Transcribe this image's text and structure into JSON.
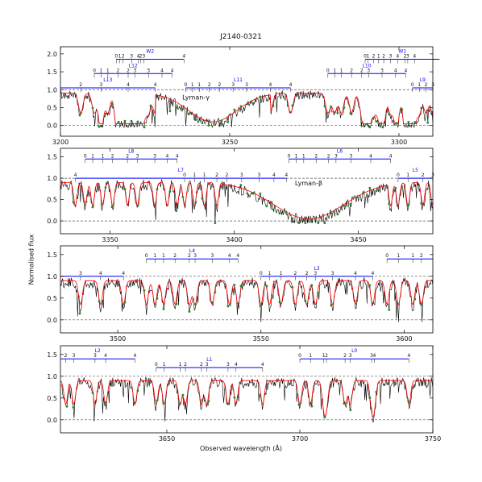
{
  "chart_data": {
    "type": "line",
    "title": "J2140-0321",
    "ylabel": "Normalised flux",
    "xlabel": "Observed wavelength (Å)",
    "colors": {
      "data": "#000000",
      "model": "#ff0000",
      "fit_points": "#228b22",
      "lines": "#0000ff",
      "dashed": "#555555"
    },
    "grid": false,
    "panels": [
      {
        "xlim": [
          3200,
          3310
        ],
        "ylim": [
          -0.3,
          2.2
        ],
        "xticks": [
          3200,
          3250,
          3300
        ],
        "yticks": [
          0.0,
          0.5,
          1.0,
          1.5,
          2.0
        ],
        "region_labels": [
          {
            "text": "Lyman-γ",
            "x": 3240,
            "y": 0.72
          }
        ],
        "systems": [
          {
            "label": "W2",
            "y": 1.85,
            "x0": 3216.5,
            "x1": 3236.5,
            "ticks": [
              {
                "x": 3216.5,
                "t": "0"
              },
              {
                "x": 3217.5,
                "t": "1"
              },
              {
                "x": 3218.5,
                "t": "2"
              },
              {
                "x": 3221,
                "t": "3"
              },
              {
                "x": 3223,
                "t": "4"
              },
              {
                "x": 3223.7,
                "t": "2"
              },
              {
                "x": 3224.6,
                "t": "3"
              },
              {
                "x": 3236.5,
                "t": "4"
              }
            ]
          },
          {
            "label": "W1",
            "y": 1.85,
            "x0": 3290,
            "x1": 3312,
            "ticks": [
              {
                "x": 3290,
                "t": "0"
              },
              {
                "x": 3290.8,
                "t": "1"
              },
              {
                "x": 3292.5,
                "t": "2"
              },
              {
                "x": 3294,
                "t": "1"
              },
              {
                "x": 3295.5,
                "t": "2"
              },
              {
                "x": 3297.5,
                "t": "3"
              },
              {
                "x": 3299.6,
                "t": "4"
              },
              {
                "x": 3301.8,
                "t": "2"
              },
              {
                "x": 3302.6,
                "t": "3"
              },
              {
                "x": 3304.6,
                "t": "4"
              }
            ]
          },
          {
            "label": "L12",
            "y": 1.45,
            "x0": 3210,
            "x1": 3233,
            "ticks": [
              {
                "x": 3210,
                "t": "0"
              },
              {
                "x": 3212,
                "t": "1"
              },
              {
                "x": 3214,
                "t": "1"
              },
              {
                "x": 3217,
                "t": "2"
              },
              {
                "x": 3220,
                "t": "2"
              },
              {
                "x": 3222,
                "t": "3"
              },
              {
                "x": 3226,
                "t": "3"
              },
              {
                "x": 3230,
                "t": "4"
              },
              {
                "x": 3233,
                "t": "4"
              }
            ]
          },
          {
            "label": "L10",
            "y": 1.45,
            "x0": 3279,
            "x1": 3302,
            "ticks": [
              {
                "x": 3279,
                "t": "0"
              },
              {
                "x": 3281,
                "t": "1"
              },
              {
                "x": 3283,
                "t": "1"
              },
              {
                "x": 3286,
                "t": "2"
              },
              {
                "x": 3289,
                "t": "2"
              },
              {
                "x": 3291,
                "t": "3"
              },
              {
                "x": 3295,
                "t": "3"
              },
              {
                "x": 3299,
                "t": "4"
              },
              {
                "x": 3302,
                "t": "4"
              }
            ]
          },
          {
            "label": "L13",
            "y": 1.05,
            "x0": 3200,
            "x1": 3228,
            "ticks": [
              {
                "x": 3206,
                "t": "2"
              },
              {
                "x": 3212,
                "t": "3"
              },
              {
                "x": 3220,
                "t": "4"
              },
              {
                "x": 3228,
                "t": "4"
              }
            ]
          },
          {
            "label": "L11",
            "y": 1.05,
            "x0": 3237,
            "x1": 3268,
            "ticks": [
              {
                "x": 3237,
                "t": "0"
              },
              {
                "x": 3239,
                "t": "1"
              },
              {
                "x": 3241,
                "t": "1"
              },
              {
                "x": 3244,
                "t": "2"
              },
              {
                "x": 3247,
                "t": "2"
              },
              {
                "x": 3251,
                "t": "3"
              },
              {
                "x": 3255,
                "t": "3"
              },
              {
                "x": 3262,
                "t": "4"
              },
              {
                "x": 3268,
                "t": "4"
              }
            ]
          },
          {
            "label": "L9",
            "y": 1.05,
            "x0": 3304,
            "x1": 3310,
            "ticks": [
              {
                "x": 3304,
                "t": "0"
              },
              {
                "x": 3306,
                "t": "1"
              },
              {
                "x": 3308,
                "t": "2"
              },
              {
                "x": 3310,
                "t": "3"
              }
            ]
          }
        ]
      },
      {
        "xlim": [
          3330,
          3480
        ],
        "ylim": [
          -0.3,
          1.7
        ],
        "xticks": [
          3350,
          3400,
          3450
        ],
        "yticks": [
          0.0,
          0.5,
          1.0,
          1.5
        ],
        "region_labels": [
          {
            "text": "Lyman-β",
            "x": 3430,
            "y": 0.83
          }
        ],
        "systems": [
          {
            "label": "L8",
            "y": 1.45,
            "x0": 3340,
            "x1": 3377,
            "ticks": [
              {
                "x": 3340,
                "t": "0"
              },
              {
                "x": 3343,
                "t": "1"
              },
              {
                "x": 3347,
                "t": "1"
              },
              {
                "x": 3351,
                "t": "2"
              },
              {
                "x": 3357,
                "t": "2"
              },
              {
                "x": 3361,
                "t": "3"
              },
              {
                "x": 3368,
                "t": "3"
              },
              {
                "x": 3373,
                "t": "4"
              },
              {
                "x": 3377,
                "t": "4"
              }
            ]
          },
          {
            "label": "L6",
            "y": 1.45,
            "x0": 3422,
            "x1": 3463,
            "ticks": [
              {
                "x": 3422,
                "t": "0"
              },
              {
                "x": 3425,
                "t": "1"
              },
              {
                "x": 3428,
                "t": "1"
              },
              {
                "x": 3433,
                "t": "2"
              },
              {
                "x": 3438,
                "t": "2"
              },
              {
                "x": 3441,
                "t": "3"
              },
              {
                "x": 3447,
                "t": "3"
              },
              {
                "x": 3455,
                "t": "4"
              },
              {
                "x": 3463,
                "t": "4"
              }
            ]
          },
          {
            "label": "L7",
            "y": 1.0,
            "x0": 3336,
            "x1": 3421,
            "ticks": [
              {
                "x": 3336,
                "t": "4"
              },
              {
                "x": 3380,
                "t": "0"
              },
              {
                "x": 3384,
                "t": "1"
              },
              {
                "x": 3388,
                "t": "1"
              },
              {
                "x": 3393,
                "t": "2"
              },
              {
                "x": 3397,
                "t": "2"
              },
              {
                "x": 3403,
                "t": "3"
              },
              {
                "x": 3410,
                "t": "3"
              },
              {
                "x": 3416,
                "t": "4"
              },
              {
                "x": 3421,
                "t": "4"
              }
            ]
          },
          {
            "label": "L5",
            "y": 1.0,
            "x0": 3466,
            "x1": 3480,
            "ticks": [
              {
                "x": 3466,
                "t": "0"
              },
              {
                "x": 3470,
                "t": "1"
              },
              {
                "x": 3476,
                "t": "2"
              },
              {
                "x": 3480,
                "t": "3"
              }
            ]
          }
        ]
      },
      {
        "xlim": [
          3480,
          3610
        ],
        "ylim": [
          -0.3,
          1.7
        ],
        "xticks": [
          3500,
          3550,
          3600
        ],
        "yticks": [
          0.0,
          0.5,
          1.0,
          1.5
        ],
        "region_labels": [],
        "systems": [
          {
            "label": "",
            "y": 1.0,
            "x0": 3480,
            "x1": 3502,
            "ticks": [
              {
                "x": 3487,
                "t": "3"
              },
              {
                "x": 3494,
                "t": "4"
              },
              {
                "x": 3502,
                "t": "4"
              }
            ]
          },
          {
            "label": "L4",
            "y": 1.4,
            "x0": 3510,
            "x1": 3542,
            "ticks": [
              {
                "x": 3510,
                "t": "0"
              },
              {
                "x": 3513,
                "t": "1"
              },
              {
                "x": 3516,
                "t": "1"
              },
              {
                "x": 3520,
                "t": "2"
              },
              {
                "x": 3525,
                "t": "2"
              },
              {
                "x": 3527,
                "t": "3"
              },
              {
                "x": 3533,
                "t": "3"
              },
              {
                "x": 3539,
                "t": "4"
              },
              {
                "x": 3542,
                "t": "4"
              }
            ]
          },
          {
            "label": "L3",
            "y": 1.0,
            "x0": 3550,
            "x1": 3589,
            "ticks": [
              {
                "x": 3550,
                "t": "0"
              },
              {
                "x": 3553,
                "t": "1"
              },
              {
                "x": 3557,
                "t": "1"
              },
              {
                "x": 3562,
                "t": "2"
              },
              {
                "x": 3566,
                "t": "2"
              },
              {
                "x": 3569,
                "t": "3"
              },
              {
                "x": 3575,
                "t": "3"
              },
              {
                "x": 3583,
                "t": "4"
              },
              {
                "x": 3589,
                "t": "4"
              }
            ]
          },
          {
            "label": "",
            "y": 1.4,
            "x0": 3594,
            "x1": 3610,
            "ticks": [
              {
                "x": 3594,
                "t": "0"
              },
              {
                "x": 3598,
                "t": "1"
              },
              {
                "x": 3603,
                "t": "1"
              },
              {
                "x": 3606,
                "t": "2"
              }
            ]
          }
        ]
      },
      {
        "xlim": [
          3610,
          3750
        ],
        "ylim": [
          -0.3,
          1.7
        ],
        "xticks": [
          3650,
          3700,
          3750
        ],
        "yticks": [
          0.0,
          0.5,
          1.0,
          1.5
        ],
        "region_labels": [],
        "systems": [
          {
            "label": "L2",
            "y": 1.4,
            "x0": 3610,
            "x1": 3638,
            "ticks": [
              {
                "x": 3612,
                "t": "2"
              },
              {
                "x": 3615,
                "t": "3"
              },
              {
                "x": 3623,
                "t": "3"
              },
              {
                "x": 3627,
                "t": "4"
              },
              {
                "x": 3638,
                "t": "4"
              }
            ]
          },
          {
            "label": "L1",
            "y": 1.2,
            "x0": 3646,
            "x1": 3686,
            "ticks": [
              {
                "x": 3646,
                "t": "0"
              },
              {
                "x": 3649,
                "t": "1"
              },
              {
                "x": 3655,
                "t": "1"
              },
              {
                "x": 3657,
                "t": "2"
              },
              {
                "x": 3663,
                "t": "2"
              },
              {
                "x": 3665,
                "t": "3"
              },
              {
                "x": 3673,
                "t": "3"
              },
              {
                "x": 3676,
                "t": "4"
              },
              {
                "x": 3686,
                "t": "4"
              }
            ]
          },
          {
            "label": "L0",
            "y": 1.4,
            "x0": 3700,
            "x1": 3741,
            "ticks": [
              {
                "x": 3700,
                "t": "0"
              },
              {
                "x": 3704,
                "t": "1"
              },
              {
                "x": 3709,
                "t": "1"
              },
              {
                "x": 3710,
                "t": "2"
              },
              {
                "x": 3717,
                "t": "2"
              },
              {
                "x": 3719,
                "t": "3"
              },
              {
                "x": 3727,
                "t": "3"
              },
              {
                "x": 3728,
                "t": "4"
              },
              {
                "x": 3741,
                "t": "4"
              }
            ]
          }
        ]
      }
    ]
  }
}
